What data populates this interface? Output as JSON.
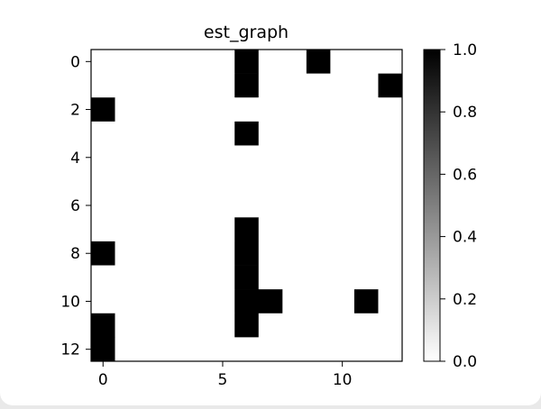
{
  "chart_data": {
    "type": "heatmap",
    "title": "est_graph",
    "xlabel": "",
    "ylabel": "",
    "rows": 13,
    "cols": 13,
    "x_ticks": [
      0,
      5,
      10
    ],
    "y_ticks": [
      0,
      2,
      4,
      6,
      8,
      10,
      12
    ],
    "matrix": [
      [
        0,
        0,
        0,
        0,
        0,
        0,
        1,
        0,
        0,
        1,
        0,
        0,
        0
      ],
      [
        0,
        0,
        0,
        0,
        0,
        0,
        1,
        0,
        0,
        0,
        0,
        0,
        1
      ],
      [
        1,
        0,
        0,
        0,
        0,
        0,
        0,
        0,
        0,
        0,
        0,
        0,
        0
      ],
      [
        0,
        0,
        0,
        0,
        0,
        0,
        1,
        0,
        0,
        0,
        0,
        0,
        0
      ],
      [
        0,
        0,
        0,
        0,
        0,
        0,
        0,
        0,
        0,
        0,
        0,
        0,
        0
      ],
      [
        0,
        0,
        0,
        0,
        0,
        0,
        0,
        0,
        0,
        0,
        0,
        0,
        0
      ],
      [
        0,
        0,
        0,
        0,
        0,
        0,
        0,
        0,
        0,
        0,
        0,
        0,
        0
      ],
      [
        0,
        0,
        0,
        0,
        0,
        0,
        1,
        0,
        0,
        0,
        0,
        0,
        0
      ],
      [
        1,
        0,
        0,
        0,
        0,
        0,
        1,
        0,
        0,
        0,
        0,
        0,
        0
      ],
      [
        0,
        0,
        0,
        0,
        0,
        0,
        1,
        0,
        0,
        0,
        0,
        0,
        0
      ],
      [
        0,
        0,
        0,
        0,
        0,
        0,
        1,
        1,
        0,
        0,
        0,
        1,
        0
      ],
      [
        1,
        0,
        0,
        0,
        0,
        0,
        1,
        0,
        0,
        0,
        0,
        0,
        0
      ],
      [
        1,
        0,
        0,
        0,
        0,
        0,
        0,
        0,
        0,
        0,
        0,
        0,
        0
      ]
    ],
    "colormap": "gray_r",
    "vmin": 0.0,
    "vmax": 1.0,
    "colorbar_ticks": [
      "0.0",
      "0.2",
      "0.4",
      "0.6",
      "0.8",
      "1.0"
    ],
    "grid": false
  }
}
